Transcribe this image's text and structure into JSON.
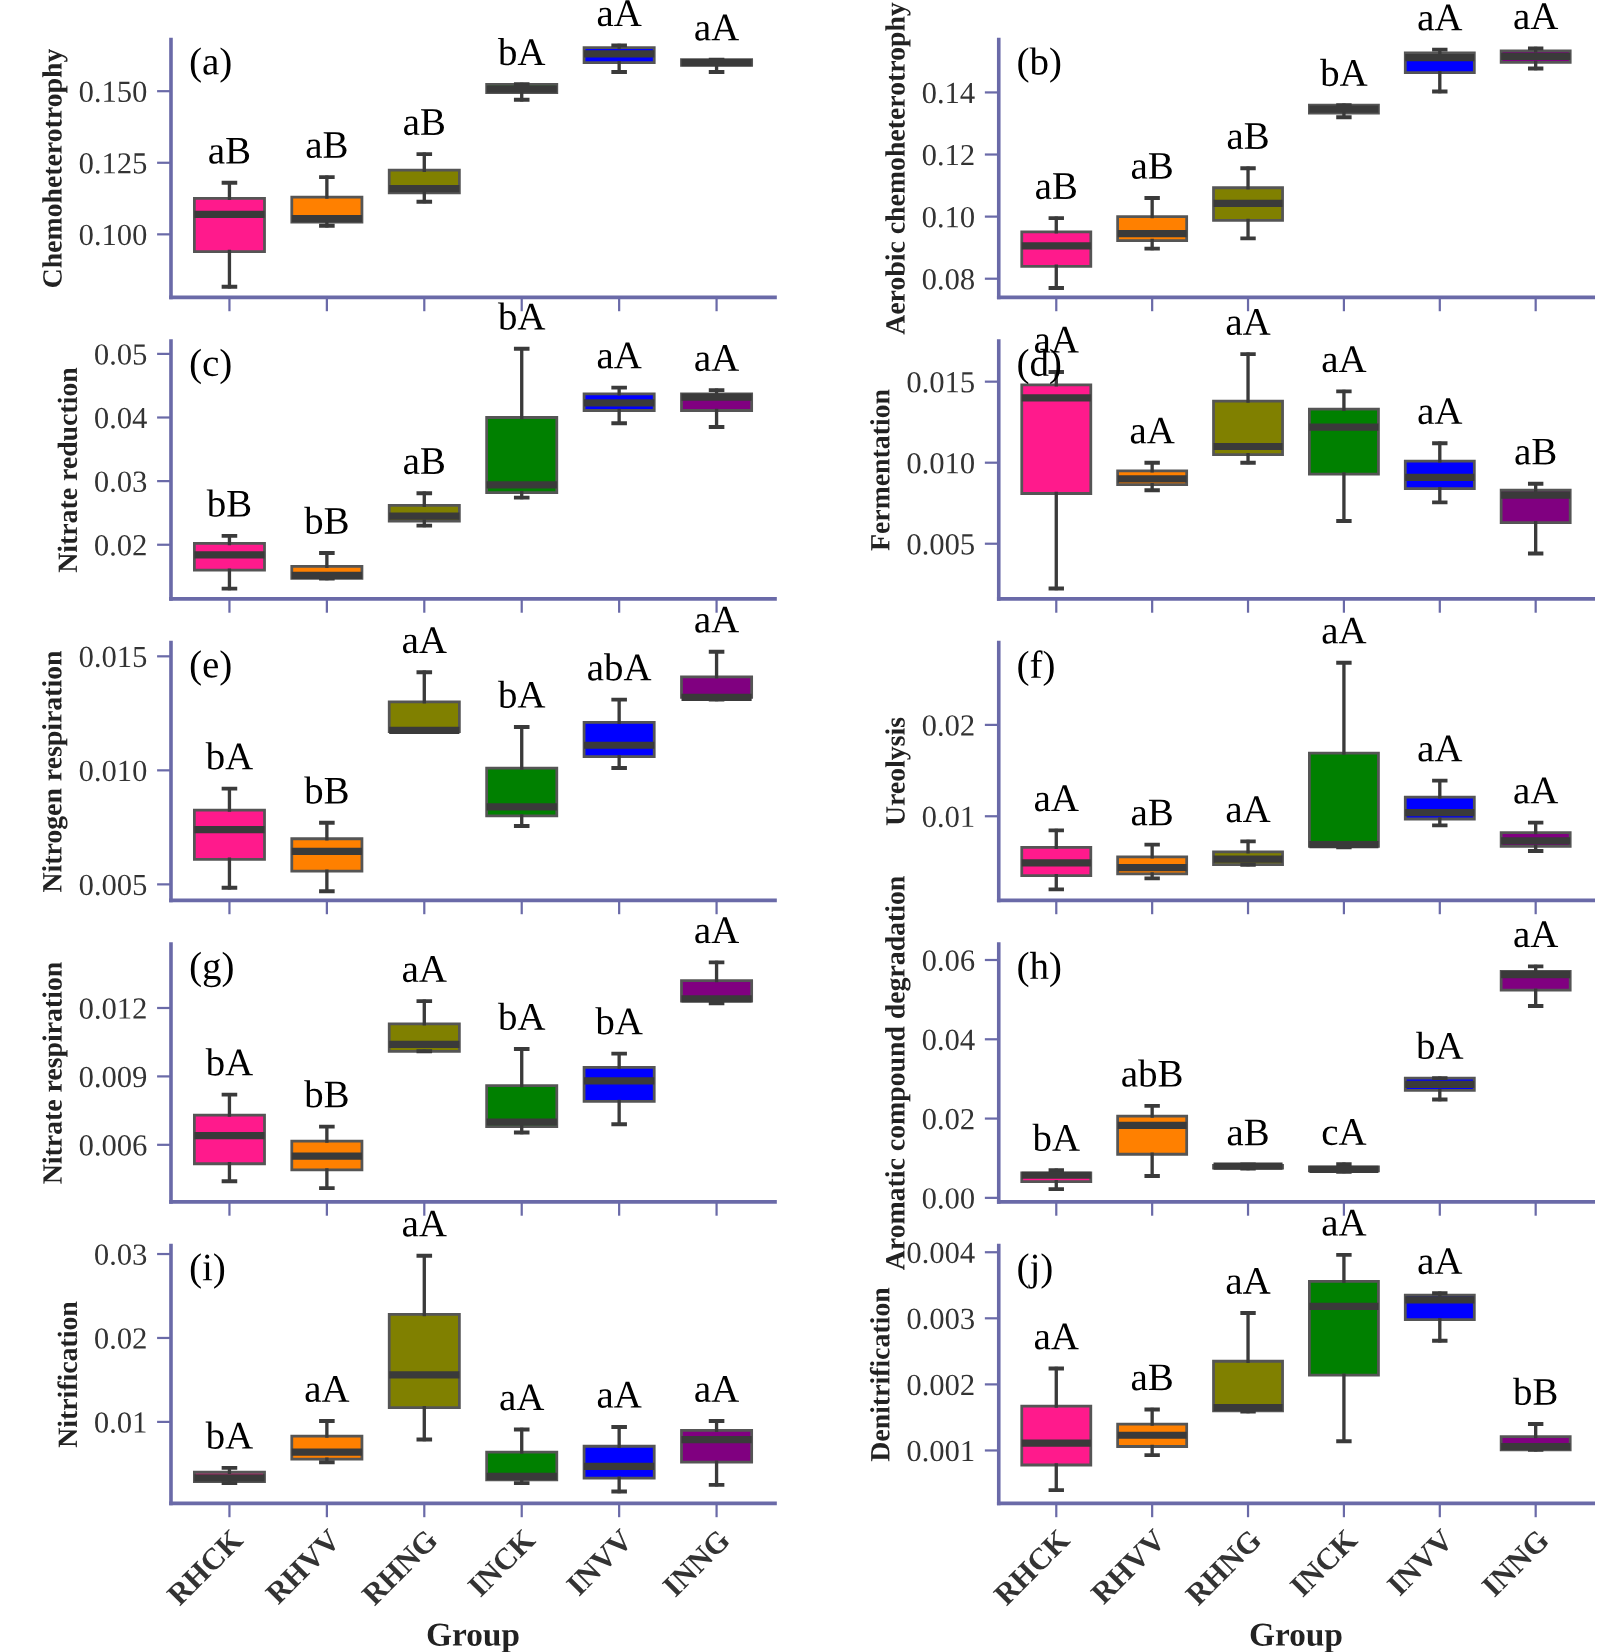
{
  "chart_data": [
    {
      "type": "box",
      "categories": [
        "RHCK",
        "RHVV",
        "RHNG",
        "INCK",
        "INVV",
        "INNG"
      ],
      "colors": [
        "#ff1a8c",
        "#ff8000",
        "#808000",
        "#008000",
        "#0000ff",
        "#800080"
      ],
      "ylabel": "Chemoheterotrophy",
      "tick_labels": "y",
      "ylim": [
        0.078,
        0.168
      ],
      "yticks": [
        {
          "value": 0.1,
          "label": "0.100"
        },
        0.125,
        {
          "value": 0.15,
          "label": "0.150"
        }
      ],
      "boxes": [
        {
          "low": 0.0817,
          "q1": 0.094,
          "median": 0.107,
          "q3": 0.1126,
          "high": 0.118
        },
        {
          "low": 0.103,
          "q1": 0.1043,
          "median": 0.1055,
          "q3": 0.113,
          "high": 0.12
        },
        {
          "low": 0.1114,
          "q1": 0.1145,
          "median": 0.116,
          "q3": 0.1224,
          "high": 0.128
        },
        {
          "low": 0.147,
          "q1": 0.1495,
          "median": 0.1507,
          "q3": 0.1524,
          "high": 0.1524
        },
        {
          "low": 0.1567,
          "q1": 0.16,
          "median": 0.163,
          "q3": 0.1652,
          "high": 0.166
        },
        {
          "low": 0.1567,
          "q1": 0.159,
          "median": 0.16,
          "q3": 0.161,
          "high": 0.161
        }
      ],
      "annotations": [
        "(a)",
        {
          "text": "aB",
          "x": "RHCK",
          "y": 0.118
        },
        {
          "text": "aB",
          "x": "RHVV",
          "y": 0.12
        },
        {
          "text": "aB",
          "x": "RHNG",
          "y": 0.128
        },
        {
          "text": "bA",
          "x": "INCK",
          "y": 0.1524
        },
        {
          "text": "aA",
          "x": "INVV",
          "y": 0.166
        },
        {
          "text": "aA",
          "x": "INNG",
          "y": 0.161
        }
      ]
    },
    {
      "type": "box",
      "categories": [
        "RHCK",
        "RHVV",
        "RHNG",
        "INCK",
        "INVV",
        "INNG"
      ],
      "colors": [
        "#ff1a8c",
        "#ff8000",
        "#808000",
        "#008000",
        "#0000ff",
        "#800080"
      ],
      "ylabel": "Aerobic chemoheterotrophy",
      "tick_labels": "y",
      "ylim": [
        0.074,
        0.157
      ],
      "yticks": [
        0.08,
        {
          "value": 0.1,
          "label": "0.10"
        },
        0.12,
        0.14
      ],
      "boxes": [
        {
          "low": 0.077,
          "q1": 0.084,
          "median": 0.0906,
          "q3": 0.0951,
          "high": 0.0995
        },
        {
          "low": 0.0897,
          "q1": 0.0923,
          "median": 0.0945,
          "q3": 0.1,
          "high": 0.106
        },
        {
          "low": 0.093,
          "q1": 0.0988,
          "median": 0.1043,
          "q3": 0.1093,
          "high": 0.1156
        },
        {
          "low": 0.132,
          "q1": 0.1333,
          "median": 0.1346,
          "q3": 0.1359,
          "high": 0.1359
        },
        {
          "low": 0.1403,
          "q1": 0.1464,
          "median": 0.1512,
          "q3": 0.1527,
          "high": 0.1538
        },
        {
          "low": 0.1477,
          "q1": 0.1497,
          "median": 0.1516,
          "q3": 0.1534,
          "high": 0.1542
        }
      ],
      "annotations": [
        "(b)",
        {
          "text": "aB",
          "x": "RHCK",
          "y": 0.0995
        },
        {
          "text": "aB",
          "x": "RHVV",
          "y": 0.106
        },
        {
          "text": "aB",
          "x": "RHNG",
          "y": 0.1156
        },
        {
          "text": "bA",
          "x": "INCK",
          "y": 0.1359
        },
        {
          "text": "aA",
          "x": "INVV",
          "y": 0.1538
        },
        {
          "text": "aA",
          "x": "INNG",
          "y": 0.1542
        }
      ]
    },
    {
      "type": "box",
      "categories": [
        "RHCK",
        "RHVV",
        "RHNG",
        "INCK",
        "INVV",
        "INNG"
      ],
      "colors": [
        "#ff1a8c",
        "#ff8000",
        "#808000",
        "#008000",
        "#0000ff",
        "#800080"
      ],
      "ylabel": "Nitrate reduction",
      "tick_labels": "y",
      "ylim": [
        0.0115,
        0.052
      ],
      "yticks": [
        0.02,
        0.03,
        0.04,
        0.05
      ],
      "boxes": [
        {
          "low": 0.0131,
          "q1": 0.016,
          "median": 0.0184,
          "q3": 0.0202,
          "high": 0.0214
        },
        {
          "low": 0.0147,
          "q1": 0.0147,
          "median": 0.0152,
          "q3": 0.0166,
          "high": 0.0187
        },
        {
          "low": 0.023,
          "q1": 0.0237,
          "median": 0.0245,
          "q3": 0.0262,
          "high": 0.0281
        },
        {
          "low": 0.0274,
          "q1": 0.0282,
          "median": 0.0294,
          "q3": 0.04,
          "high": 0.0508
        },
        {
          "low": 0.0391,
          "q1": 0.0411,
          "median": 0.0423,
          "q3": 0.0437,
          "high": 0.0447
        },
        {
          "low": 0.0385,
          "q1": 0.0411,
          "median": 0.0432,
          "q3": 0.0437,
          "high": 0.0443
        }
      ],
      "annotations": [
        "(c)",
        {
          "text": "bB",
          "x": "RHCK",
          "y": 0.0214
        },
        {
          "text": "bB",
          "x": "RHVV",
          "y": 0.0187
        },
        {
          "text": "aB",
          "x": "RHNG",
          "y": 0.0281
        },
        {
          "text": "bA",
          "x": "INCK",
          "y": 0.0508
        },
        {
          "text": "aA",
          "x": "INVV",
          "y": 0.0447
        },
        {
          "text": "aA",
          "x": "INNG",
          "y": 0.0443
        }
      ]
    },
    {
      "type": "box",
      "categories": [
        "RHCK",
        "RHVV",
        "RHNG",
        "INCK",
        "INVV",
        "INNG"
      ],
      "colors": [
        "#ff1a8c",
        "#ff8000",
        "#808000",
        "#008000",
        "#0000ff",
        "#800080"
      ],
      "ylabel": "Fermentation",
      "tick_labels": "y",
      "ylim": [
        0.0016,
        0.0175
      ],
      "yticks": [
        0.005,
        {
          "value": 0.01,
          "label": "0.010"
        },
        0.015
      ],
      "boxes": [
        {
          "low": 0.00224,
          "q1": 0.0081,
          "median": 0.014,
          "q3": 0.0148,
          "high": 0.0156
        },
        {
          "low": 0.0083,
          "q1": 0.00865,
          "median": 0.009,
          "q3": 0.0095,
          "high": 0.01
        },
        {
          "low": 0.01,
          "q1": 0.0105,
          "median": 0.011,
          "q3": 0.0138,
          "high": 0.0167
        },
        {
          "low": 0.0064,
          "q1": 0.0093,
          "median": 0.0122,
          "q3": 0.0133,
          "high": 0.0144
        },
        {
          "low": 0.00755,
          "q1": 0.0084,
          "median": 0.0091,
          "q3": 0.0101,
          "high": 0.0112
        },
        {
          "low": 0.0044,
          "q1": 0.0063,
          "median": 0.008,
          "q3": 0.0083,
          "high": 0.0087
        }
      ],
      "annotations": [
        "(d)",
        {
          "text": "aA",
          "x": "RHCK",
          "y": 0.0156
        },
        {
          "text": "aA",
          "x": "RHVV",
          "y": 0.01
        },
        {
          "text": "aA",
          "x": "RHNG",
          "y": 0.0167
        },
        {
          "text": "aA",
          "x": "INCK",
          "y": 0.0144
        },
        {
          "text": "aA",
          "x": "INVV",
          "y": 0.0112
        },
        {
          "text": "aB",
          "x": "INNG",
          "y": 0.0087
        }
      ]
    },
    {
      "type": "box",
      "categories": [
        "RHCK",
        "RHVV",
        "RHNG",
        "INCK",
        "INVV",
        "INNG"
      ],
      "colors": [
        "#ff1a8c",
        "#ff8000",
        "#808000",
        "#008000",
        "#0000ff",
        "#800080"
      ],
      "ylabel": "Nitrogen respiration",
      "tick_labels": "y",
      "ylim": [
        0.0043,
        0.0156
      ],
      "yticks": [
        0.005,
        {
          "value": 0.01,
          "label": "0.010"
        },
        0.015
      ],
      "boxes": [
        {
          "low": 0.00485,
          "q1": 0.0061,
          "median": 0.0074,
          "q3": 0.00826,
          "high": 0.0092
        },
        {
          "low": 0.0047,
          "q1": 0.00558,
          "median": 0.00645,
          "q3": 0.007,
          "high": 0.0077
        },
        {
          "low": 0.0117,
          "q1": 0.0117,
          "median": 0.01175,
          "q3": 0.013,
          "high": 0.0143
        },
        {
          "low": 0.00756,
          "q1": 0.008,
          "median": 0.0084,
          "q3": 0.0101,
          "high": 0.0119
        },
        {
          "low": 0.0101,
          "q1": 0.0106,
          "median": 0.0111,
          "q3": 0.0121,
          "high": 0.0131
        },
        {
          "low": 0.0131,
          "q1": 0.0132,
          "median": 0.0132,
          "q3": 0.0141,
          "high": 0.0152
        }
      ],
      "annotations": [
        "(e)",
        {
          "text": "bA",
          "x": "RHCK",
          "y": 0.0092
        },
        {
          "text": "bB",
          "x": "RHVV",
          "y": 0.0077
        },
        {
          "text": "aA",
          "x": "RHNG",
          "y": 0.0143
        },
        {
          "text": "bA",
          "x": "INCK",
          "y": 0.0119
        },
        {
          "text": "abA",
          "x": "INVV",
          "y": 0.0131
        },
        {
          "text": "aA",
          "x": "INNG",
          "y": 0.0152
        }
      ]
    },
    {
      "type": "box",
      "categories": [
        "RHCK",
        "RHVV",
        "RHNG",
        "INCK",
        "INVV",
        "INNG"
      ],
      "colors": [
        "#ff1a8c",
        "#ff8000",
        "#808000",
        "#008000",
        "#0000ff",
        "#800080"
      ],
      "ylabel": "Ureolysis",
      "tick_labels": "y",
      "ylim": [
        0.0008,
        0.029
      ],
      "yticks": [
        0.01,
        0.02
      ],
      "boxes": [
        {
          "low": 0.002,
          "q1": 0.0035,
          "median": 0.0049,
          "q3": 0.0066,
          "high": 0.00845
        },
        {
          "low": 0.0032,
          "q1": 0.0037,
          "median": 0.00437,
          "q3": 0.00556,
          "high": 0.0069
        },
        {
          "low": 0.0047,
          "q1": 0.0047,
          "median": 0.0053,
          "q3": 0.0061,
          "high": 0.00725
        },
        {
          "low": 0.0066,
          "q1": 0.0067,
          "median": 0.0069,
          "q3": 0.0169,
          "high": 0.0268
        },
        {
          "low": 0.009,
          "q1": 0.0097,
          "median": 0.0104,
          "q3": 0.0121,
          "high": 0.0139
        },
        {
          "low": 0.0062,
          "q1": 0.0067,
          "median": 0.0073,
          "q3": 0.0082,
          "high": 0.0093
        }
      ],
      "annotations": [
        "(f)",
        {
          "text": "aA",
          "x": "RHCK",
          "y": 0.00845
        },
        {
          "text": "aB",
          "x": "RHVV",
          "y": 0.0069
        },
        {
          "text": "aA",
          "x": "RHNG",
          "y": 0.00725
        },
        {
          "text": "aA",
          "x": "INCK",
          "y": 0.0268
        },
        {
          "text": "aA",
          "x": "INVV",
          "y": 0.0139
        },
        {
          "text": "aA",
          "x": "INNG",
          "y": 0.0093
        }
      ]
    },
    {
      "type": "box",
      "categories": [
        "RHCK",
        "RHVV",
        "RHNG",
        "INCK",
        "INVV",
        "INNG"
      ],
      "colors": [
        "#ff1a8c",
        "#ff8000",
        "#808000",
        "#008000",
        "#0000ff",
        "#800080"
      ],
      "ylabel": "Nitrate respiration",
      "tick_labels": "y",
      "ylim": [
        0.0035,
        0.0148
      ],
      "yticks": [
        0.006,
        0.009,
        0.012
      ],
      "boxes": [
        {
          "low": 0.0044,
          "q1": 0.00517,
          "median": 0.0064,
          "q3": 0.0073,
          "high": 0.0082
        },
        {
          "low": 0.0041,
          "q1": 0.0049,
          "median": 0.0055,
          "q3": 0.00616,
          "high": 0.0068
        },
        {
          "low": 0.0101,
          "q1": 0.0101,
          "median": 0.0104,
          "q3": 0.0113,
          "high": 0.0123
        },
        {
          "low": 0.00654,
          "q1": 0.0068,
          "median": 0.007,
          "q3": 0.0086,
          "high": 0.0102
        },
        {
          "low": 0.0069,
          "q1": 0.0079,
          "median": 0.0088,
          "q3": 0.0094,
          "high": 0.01
        },
        {
          "low": 0.0122,
          "q1": 0.0123,
          "median": 0.0124,
          "q3": 0.0132,
          "high": 0.014
        }
      ],
      "annotations": [
        "(g)",
        {
          "text": "bA",
          "x": "RHCK",
          "y": 0.0082
        },
        {
          "text": "bB",
          "x": "RHVV",
          "y": 0.0068
        },
        {
          "text": "aA",
          "x": "RHNG",
          "y": 0.0123
        },
        {
          "text": "bA",
          "x": "INCK",
          "y": 0.0102
        },
        {
          "text": "bA",
          "x": "INVV",
          "y": 0.01
        },
        {
          "text": "aA",
          "x": "INNG",
          "y": 0.014
        }
      ]
    },
    {
      "type": "box",
      "categories": [
        "RHCK",
        "RHVV",
        "RHNG",
        "INCK",
        "INVV",
        "INNG"
      ],
      "colors": [
        "#ff1a8c",
        "#ff8000",
        "#808000",
        "#008000",
        "#0000ff",
        "#800080"
      ],
      "ylabel": "Aromatic compound degradation",
      "tick_labels": "y",
      "ylim": [
        -0.001,
        0.064
      ],
      "yticks": [
        {
          "value": 0,
          "label": "0.00"
        },
        0.02,
        0.04,
        0.06
      ],
      "boxes": [
        {
          "low": 0.0022,
          "q1": 0.0041,
          "median": 0.0057,
          "q3": 0.0063,
          "high": 0.007
        },
        {
          "low": 0.0055,
          "q1": 0.011,
          "median": 0.0183,
          "q3": 0.0206,
          "high": 0.0232
        },
        {
          "low": 0.0074,
          "q1": 0.0075,
          "median": 0.008,
          "q3": 0.0082,
          "high": 0.0084
        },
        {
          "low": 0.0066,
          "q1": 0.0068,
          "median": 0.0072,
          "q3": 0.0078,
          "high": 0.0085
        },
        {
          "low": 0.0248,
          "q1": 0.0271,
          "median": 0.0286,
          "q3": 0.0302,
          "high": 0.0302
        },
        {
          "low": 0.0484,
          "q1": 0.0524,
          "median": 0.0563,
          "q3": 0.0571,
          "high": 0.0584
        }
      ],
      "annotations": [
        "(h)",
        {
          "text": "bA",
          "x": "RHCK",
          "y": 0.007
        },
        {
          "text": "abB",
          "x": "RHVV",
          "y": 0.0232
        },
        {
          "text": "aB",
          "x": "RHNG",
          "y": 0.0084
        },
        {
          "text": "cA",
          "x": "INCK",
          "y": 0.0085
        },
        {
          "text": "bA",
          "x": "INVV",
          "y": 0.0302
        },
        {
          "text": "aA",
          "x": "INNG",
          "y": 0.0584
        }
      ]
    },
    {
      "type": "box",
      "categories": [
        "RHCK",
        "RHVV",
        "RHNG",
        "INCK",
        "INVV",
        "INNG"
      ],
      "colors": [
        "#ff1a8c",
        "#ff8000",
        "#808000",
        "#008000",
        "#0000ff",
        "#800080"
      ],
      "ylabel": "Nitrification",
      "xlabel": "Group",
      "ylim": [
        0.0003,
        0.031
      ],
      "yticks": [
        0.01,
        0.02,
        0.03
      ],
      "boxes": [
        {
          "low": 0.0027,
          "q1": 0.0029,
          "median": 0.00333,
          "q3": 0.004,
          "high": 0.00452
        },
        {
          "low": 0.0052,
          "q1": 0.00556,
          "median": 0.0064,
          "q3": 0.0083,
          "high": 0.0101
        },
        {
          "low": 0.0079,
          "q1": 0.0117,
          "median": 0.0156,
          "q3": 0.0228,
          "high": 0.0298
        },
        {
          "low": 0.0027,
          "q1": 0.0031,
          "median": 0.0035,
          "q3": 0.0064,
          "high": 0.0091
        },
        {
          "low": 0.0017,
          "q1": 0.0033,
          "median": 0.0047,
          "q3": 0.0071,
          "high": 0.0094
        },
        {
          "low": 0.0025,
          "q1": 0.0052,
          "median": 0.0079,
          "q3": 0.009,
          "high": 0.0101
        }
      ],
      "annotations": [
        "(i)",
        {
          "text": "bA",
          "x": "RHCK",
          "y": 0.00452
        },
        {
          "text": "aA",
          "x": "RHVV",
          "y": 0.0101
        },
        {
          "text": "aA",
          "x": "RHNG",
          "y": 0.0298
        },
        {
          "text": "aA",
          "x": "INCK",
          "y": 0.0091
        },
        {
          "text": "aA",
          "x": "INVV",
          "y": 0.0094
        },
        {
          "text": "aA",
          "x": "INNG",
          "y": 0.0101
        }
      ]
    },
    {
      "type": "box",
      "categories": [
        "RHCK",
        "RHVV",
        "RHNG",
        "INCK",
        "INVV",
        "INNG"
      ],
      "colors": [
        "#ff1a8c",
        "#ff8000",
        "#808000",
        "#008000",
        "#0000ff",
        "#800080"
      ],
      "ylabel": "Denitrification",
      "xlabel": "Group",
      "ylim": [
        0.0002,
        0.0041
      ],
      "yticks": [
        0.001,
        0.002,
        0.003,
        0.004
      ],
      "boxes": [
        {
          "low": 0.0004,
          "q1": 0.00078,
          "median": 0.00111,
          "q3": 0.00167,
          "high": 0.00224
        },
        {
          "low": 0.00093,
          "q1": 0.00106,
          "median": 0.00123,
          "q3": 0.0014,
          "high": 0.00162
        },
        {
          "low": 0.00159,
          "q1": 0.0016,
          "median": 0.00165,
          "q3": 0.00235,
          "high": 0.00308
        },
        {
          "low": 0.00114,
          "q1": 0.00214,
          "median": 0.00318,
          "q3": 0.00356,
          "high": 0.00396
        },
        {
          "low": 0.00266,
          "q1": 0.00298,
          "median": 0.00328,
          "q3": 0.00335,
          "high": 0.00338
        },
        {
          "low": 0.00101,
          "q1": 0.00101,
          "median": 0.00106,
          "q3": 0.00121,
          "high": 0.0014
        }
      ],
      "annotations": [
        "(j)",
        {
          "text": "aA",
          "x": "RHCK",
          "y": 0.00224
        },
        {
          "text": "aB",
          "x": "RHVV",
          "y": 0.00162
        },
        {
          "text": "aA",
          "x": "RHNG",
          "y": 0.00308
        },
        {
          "text": "aA",
          "x": "INCK",
          "y": 0.00396
        },
        {
          "text": "aA",
          "x": "INVV",
          "y": 0.00338
        },
        {
          "text": "bB",
          "x": "INNG",
          "y": 0.0014
        }
      ]
    }
  ]
}
